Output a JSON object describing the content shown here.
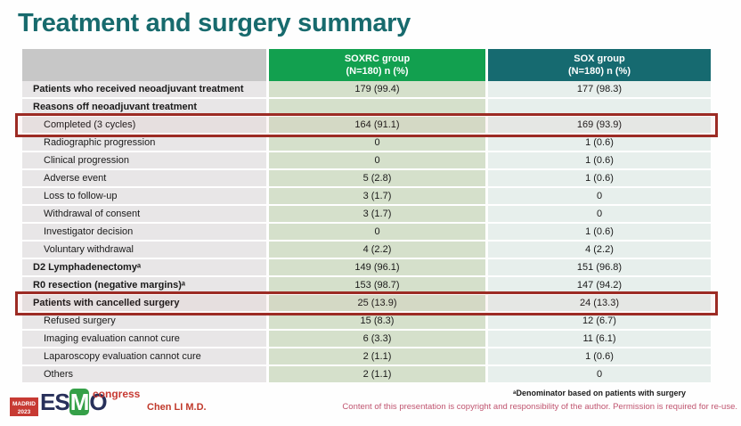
{
  "slide": {
    "title": "Treatment and surgery summary",
    "footnote": "ᵃDenominator based on patients with surgery",
    "copyright": "Content of this presentation is copyright and responsibility of the author. Permission is required for re-use.",
    "author": "Chen LI M.D.",
    "logo": {
      "location": "MADRID",
      "year": "2023",
      "org": "ESMO",
      "event": "congress"
    }
  },
  "colors": {
    "title": "#176a6d",
    "soxrc_header": "#12a04f",
    "sox_header": "#166a70",
    "label_header": "#c7c7c7",
    "label_cell": "#e8e6e7",
    "soxrc_cell": "#d5e0cb",
    "sox_cell": "#e7efec",
    "highlight_border": "#9c2b24",
    "accent_red": "#c0392b",
    "copyright_text": "#c05570"
  },
  "table": {
    "columns": {
      "label": "",
      "soxrc": {
        "name": "SOXRC group",
        "sub": "(N=180)  n (%)"
      },
      "sox": {
        "name": "SOX group",
        "sub": "(N=180)  n (%)"
      }
    },
    "rows": [
      {
        "label": "Patients who received neoadjuvant treatment",
        "soxrc": "179 (99.4)",
        "sox": "177 (98.3)",
        "bold": true,
        "indent": false,
        "highlighted": false
      },
      {
        "label": "Reasons off neoadjuvant treatment",
        "soxrc": "",
        "sox": "",
        "bold": true,
        "indent": false,
        "highlighted": false
      },
      {
        "label": "Completed (3 cycles)",
        "soxrc": "164 (91.1)",
        "sox": "169 (93.9)",
        "bold": false,
        "indent": true,
        "highlighted": true
      },
      {
        "label": "Radiographic progression",
        "soxrc": "0",
        "sox": "1 (0.6)",
        "bold": false,
        "indent": true,
        "highlighted": false
      },
      {
        "label": "Clinical progression",
        "soxrc": "0",
        "sox": "1 (0.6)",
        "bold": false,
        "indent": true,
        "highlighted": false
      },
      {
        "label": "Adverse event",
        "soxrc": "5 (2.8)",
        "sox": "1 (0.6)",
        "bold": false,
        "indent": true,
        "highlighted": false
      },
      {
        "label": "Loss to follow-up",
        "soxrc": "3 (1.7)",
        "sox": "0",
        "bold": false,
        "indent": true,
        "highlighted": false
      },
      {
        "label": "Withdrawal of consent",
        "soxrc": "3 (1.7)",
        "sox": "0",
        "bold": false,
        "indent": true,
        "highlighted": false
      },
      {
        "label": "Investigator decision",
        "soxrc": "0",
        "sox": "1 (0.6)",
        "bold": false,
        "indent": true,
        "highlighted": false
      },
      {
        "label": "Voluntary withdrawal",
        "soxrc": "4 (2.2)",
        "sox": "4 (2.2)",
        "bold": false,
        "indent": true,
        "highlighted": false
      },
      {
        "label": "D2 Lymphadenectomyᵃ",
        "soxrc": "149 (96.1)",
        "sox": "151 (96.8)",
        "bold": true,
        "indent": false,
        "highlighted": false
      },
      {
        "label": "R0 resection (negative margins)ᵃ",
        "soxrc": "153 (98.7)",
        "sox": "147 (94.2)",
        "bold": true,
        "indent": false,
        "highlighted": false
      },
      {
        "label": "Patients with cancelled surgery",
        "soxrc": "25 (13.9)",
        "sox": "24 (13.3)",
        "bold": true,
        "indent": false,
        "highlighted": true
      },
      {
        "label": "Refused surgery",
        "soxrc": "15 (8.3)",
        "sox": "12 (6.7)",
        "bold": false,
        "indent": true,
        "highlighted": false
      },
      {
        "label": "Imaging evaluation cannot cure",
        "soxrc": "6 (3.3)",
        "sox": "11 (6.1)",
        "bold": false,
        "indent": true,
        "highlighted": false
      },
      {
        "label": "Laparoscopy evaluation cannot cure",
        "soxrc": "2 (1.1)",
        "sox": "1 (0.6)",
        "bold": false,
        "indent": true,
        "highlighted": false
      },
      {
        "label": "Others",
        "soxrc": "2 (1.1)",
        "sox": "0",
        "bold": false,
        "indent": true,
        "highlighted": false
      }
    ]
  }
}
